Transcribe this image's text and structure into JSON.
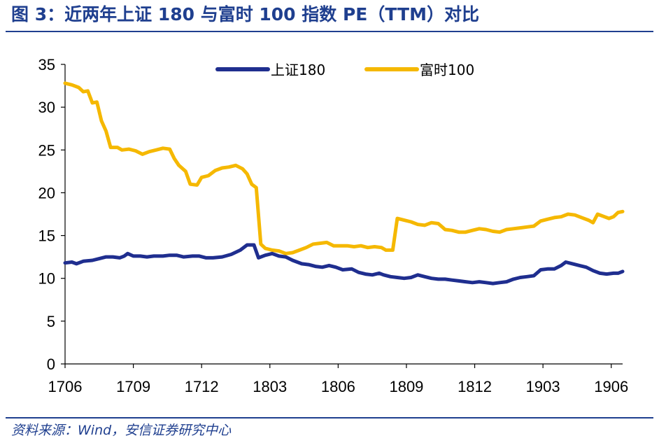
{
  "header": {
    "title": "图 3：近两年上证 180 与富时 100 指数 PE（TTM）对比"
  },
  "footer": {
    "source": "资料来源：Wind，安信证券研究中心"
  },
  "chart_data": {
    "type": "line",
    "title": "",
    "xlabel": "",
    "ylabel": "",
    "ylim": [
      0,
      35
    ],
    "yticks": [
      0,
      5,
      10,
      15,
      20,
      25,
      30,
      35
    ],
    "xlim": [
      0,
      24.5
    ],
    "xticks": [
      {
        "x": 0,
        "label": "1706"
      },
      {
        "x": 3,
        "label": "1709"
      },
      {
        "x": 6,
        "label": "1712"
      },
      {
        "x": 9,
        "label": "1803"
      },
      {
        "x": 12,
        "label": "1806"
      },
      {
        "x": 15,
        "label": "1809"
      },
      {
        "x": 18,
        "label": "1812"
      },
      {
        "x": 21,
        "label": "1903"
      },
      {
        "x": 24,
        "label": "1906"
      }
    ],
    "grid": false,
    "legend": "top-center",
    "series": [
      {
        "name": "上证180",
        "color": "#1f2e8f",
        "points": [
          [
            0,
            11.8
          ],
          [
            0.3,
            11.9
          ],
          [
            0.5,
            11.7
          ],
          [
            0.8,
            12.0
          ],
          [
            1.2,
            12.1
          ],
          [
            1.5,
            12.3
          ],
          [
            1.8,
            12.5
          ],
          [
            2.1,
            12.5
          ],
          [
            2.4,
            12.4
          ],
          [
            2.6,
            12.6
          ],
          [
            2.75,
            12.9
          ],
          [
            3.0,
            12.6
          ],
          [
            3.3,
            12.6
          ],
          [
            3.6,
            12.5
          ],
          [
            3.9,
            12.6
          ],
          [
            4.3,
            12.6
          ],
          [
            4.6,
            12.7
          ],
          [
            4.9,
            12.7
          ],
          [
            5.2,
            12.5
          ],
          [
            5.6,
            12.6
          ],
          [
            5.9,
            12.6
          ],
          [
            6.2,
            12.4
          ],
          [
            6.5,
            12.4
          ],
          [
            6.9,
            12.5
          ],
          [
            7.3,
            12.8
          ],
          [
            7.7,
            13.3
          ],
          [
            8.0,
            13.9
          ],
          [
            8.3,
            13.9
          ],
          [
            8.5,
            12.4
          ],
          [
            8.8,
            12.7
          ],
          [
            9.1,
            12.9
          ],
          [
            9.4,
            12.6
          ],
          [
            9.7,
            12.5
          ],
          [
            10.0,
            12.1
          ],
          [
            10.4,
            11.7
          ],
          [
            10.7,
            11.6
          ],
          [
            11.0,
            11.4
          ],
          [
            11.3,
            11.3
          ],
          [
            11.6,
            11.5
          ],
          [
            11.9,
            11.3
          ],
          [
            12.2,
            11.0
          ],
          [
            12.6,
            11.1
          ],
          [
            12.9,
            10.7
          ],
          [
            13.2,
            10.5
          ],
          [
            13.5,
            10.4
          ],
          [
            13.8,
            10.6
          ],
          [
            14.0,
            10.4
          ],
          [
            14.3,
            10.2
          ],
          [
            14.6,
            10.1
          ],
          [
            14.9,
            10.0
          ],
          [
            15.2,
            10.1
          ],
          [
            15.5,
            10.4
          ],
          [
            15.8,
            10.2
          ],
          [
            16.1,
            10.0
          ],
          [
            16.4,
            9.9
          ],
          [
            16.7,
            9.9
          ],
          [
            17.0,
            9.8
          ],
          [
            17.3,
            9.7
          ],
          [
            17.6,
            9.6
          ],
          [
            17.9,
            9.5
          ],
          [
            18.2,
            9.6
          ],
          [
            18.5,
            9.5
          ],
          [
            18.8,
            9.4
          ],
          [
            19.1,
            9.5
          ],
          [
            19.4,
            9.6
          ],
          [
            19.7,
            9.9
          ],
          [
            20.0,
            10.1
          ],
          [
            20.3,
            10.2
          ],
          [
            20.6,
            10.3
          ],
          [
            20.9,
            11.0
          ],
          [
            21.2,
            11.1
          ],
          [
            21.5,
            11.1
          ],
          [
            21.8,
            11.5
          ],
          [
            22.0,
            11.9
          ],
          [
            22.3,
            11.7
          ],
          [
            22.6,
            11.5
          ],
          [
            22.9,
            11.3
          ],
          [
            23.2,
            10.9
          ],
          [
            23.5,
            10.6
          ],
          [
            23.8,
            10.5
          ],
          [
            24.1,
            10.6
          ],
          [
            24.3,
            10.6
          ],
          [
            24.5,
            10.8
          ]
        ]
      },
      {
        "name": "富时100",
        "color": "#f5b800",
        "points": [
          [
            0,
            32.8
          ],
          [
            0.3,
            32.6
          ],
          [
            0.6,
            32.3
          ],
          [
            0.8,
            31.8
          ],
          [
            1.0,
            31.9
          ],
          [
            1.2,
            30.5
          ],
          [
            1.4,
            30.6
          ],
          [
            1.6,
            28.4
          ],
          [
            1.8,
            27.2
          ],
          [
            2.0,
            25.3
          ],
          [
            2.3,
            25.3
          ],
          [
            2.5,
            25.0
          ],
          [
            2.8,
            25.1
          ],
          [
            3.1,
            24.9
          ],
          [
            3.4,
            24.5
          ],
          [
            3.7,
            24.8
          ],
          [
            4.0,
            25.0
          ],
          [
            4.3,
            25.2
          ],
          [
            4.6,
            25.1
          ],
          [
            4.8,
            24.0
          ],
          [
            5.0,
            23.2
          ],
          [
            5.3,
            22.5
          ],
          [
            5.5,
            21.0
          ],
          [
            5.8,
            20.9
          ],
          [
            6.0,
            21.8
          ],
          [
            6.3,
            22.0
          ],
          [
            6.6,
            22.6
          ],
          [
            6.9,
            22.9
          ],
          [
            7.2,
            23.0
          ],
          [
            7.5,
            23.2
          ],
          [
            7.8,
            22.8
          ],
          [
            8.0,
            22.2
          ],
          [
            8.2,
            21.0
          ],
          [
            8.4,
            20.6
          ],
          [
            8.6,
            14.0
          ],
          [
            8.8,
            13.5
          ],
          [
            9.1,
            13.3
          ],
          [
            9.4,
            13.2
          ],
          [
            9.7,
            12.9
          ],
          [
            10.0,
            13.0
          ],
          [
            10.3,
            13.3
          ],
          [
            10.6,
            13.6
          ],
          [
            10.9,
            14.0
          ],
          [
            11.2,
            14.1
          ],
          [
            11.5,
            14.2
          ],
          [
            11.8,
            13.8
          ],
          [
            12.1,
            13.8
          ],
          [
            12.4,
            13.8
          ],
          [
            12.7,
            13.7
          ],
          [
            13.0,
            13.8
          ],
          [
            13.3,
            13.6
          ],
          [
            13.6,
            13.7
          ],
          [
            13.9,
            13.6
          ],
          [
            14.1,
            13.3
          ],
          [
            14.4,
            13.3
          ],
          [
            14.6,
            17.0
          ],
          [
            14.9,
            16.8
          ],
          [
            15.2,
            16.6
          ],
          [
            15.5,
            16.3
          ],
          [
            15.8,
            16.2
          ],
          [
            16.1,
            16.5
          ],
          [
            16.4,
            16.4
          ],
          [
            16.7,
            15.7
          ],
          [
            17.0,
            15.6
          ],
          [
            17.3,
            15.4
          ],
          [
            17.6,
            15.4
          ],
          [
            17.9,
            15.6
          ],
          [
            18.2,
            15.8
          ],
          [
            18.5,
            15.7
          ],
          [
            18.8,
            15.5
          ],
          [
            19.1,
            15.4
          ],
          [
            19.4,
            15.7
          ],
          [
            19.7,
            15.8
          ],
          [
            20.0,
            15.9
          ],
          [
            20.3,
            16.0
          ],
          [
            20.6,
            16.1
          ],
          [
            20.9,
            16.7
          ],
          [
            21.2,
            16.9
          ],
          [
            21.5,
            17.1
          ],
          [
            21.8,
            17.2
          ],
          [
            22.1,
            17.5
          ],
          [
            22.4,
            17.4
          ],
          [
            22.7,
            17.1
          ],
          [
            23.0,
            16.8
          ],
          [
            23.2,
            16.5
          ],
          [
            23.4,
            17.5
          ],
          [
            23.7,
            17.2
          ],
          [
            23.9,
            17.0
          ],
          [
            24.1,
            17.2
          ],
          [
            24.3,
            17.7
          ],
          [
            24.5,
            17.8
          ]
        ]
      }
    ]
  }
}
